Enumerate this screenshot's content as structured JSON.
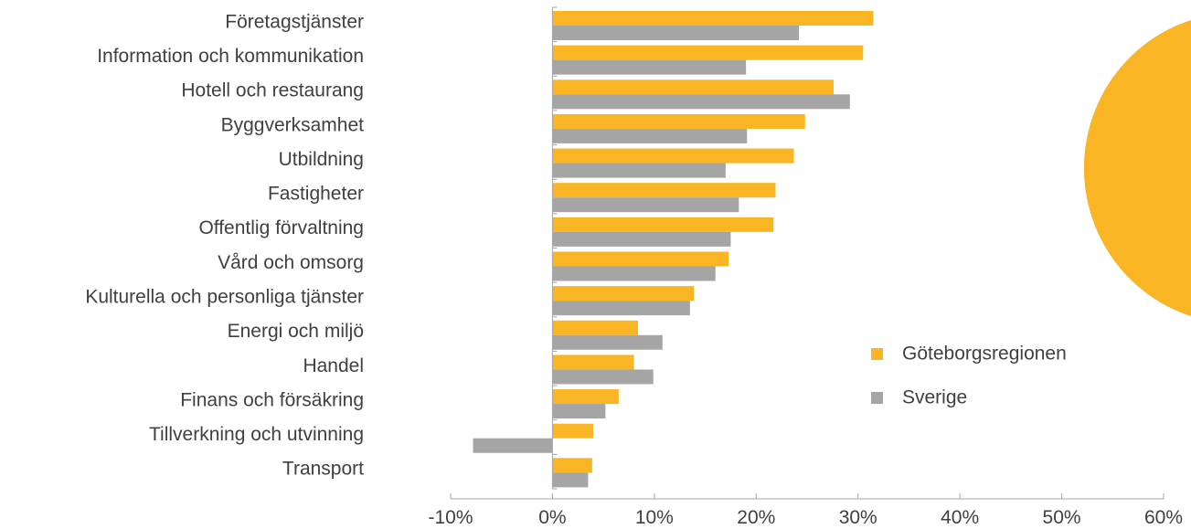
{
  "chart_data": {
    "type": "bar",
    "orientation": "horizontal",
    "categories": [
      "Företagstjänster",
      "Information och kommunikation",
      "Hotell och restaurang",
      "Byggverksamhet",
      "Utbildning",
      "Fastigheter",
      "Offentlig förvaltning",
      "Vård och omsorg",
      "Kulturella och personliga tjänster",
      "Energi och miljö",
      "Handel",
      "Finans och försäkring",
      "Tillverkning och utvinning",
      "Transport"
    ],
    "series": [
      {
        "name": "Göteborgsregionen",
        "color": "#F9B523",
        "values": [
          31.5,
          30.5,
          27.6,
          24.8,
          23.7,
          21.9,
          21.7,
          17.3,
          13.9,
          8.4,
          8.0,
          6.5,
          4.0,
          3.9
        ]
      },
      {
        "name": "Sverige",
        "color": "#A5A5A5",
        "values": [
          24.2,
          19.0,
          29.2,
          19.1,
          17.0,
          18.3,
          17.5,
          16.0,
          13.5,
          10.8,
          9.9,
          5.2,
          -7.8,
          3.5
        ]
      }
    ],
    "xlim": [
      -10,
      60
    ],
    "xticks": [
      "-10%",
      "0%",
      "10%",
      "20%",
      "30%",
      "40%",
      "50%",
      "60%"
    ],
    "xlabel": "",
    "ylabel": "",
    "grid": false,
    "legend_position": "lower-right",
    "decoration_color": "#F9B523"
  }
}
